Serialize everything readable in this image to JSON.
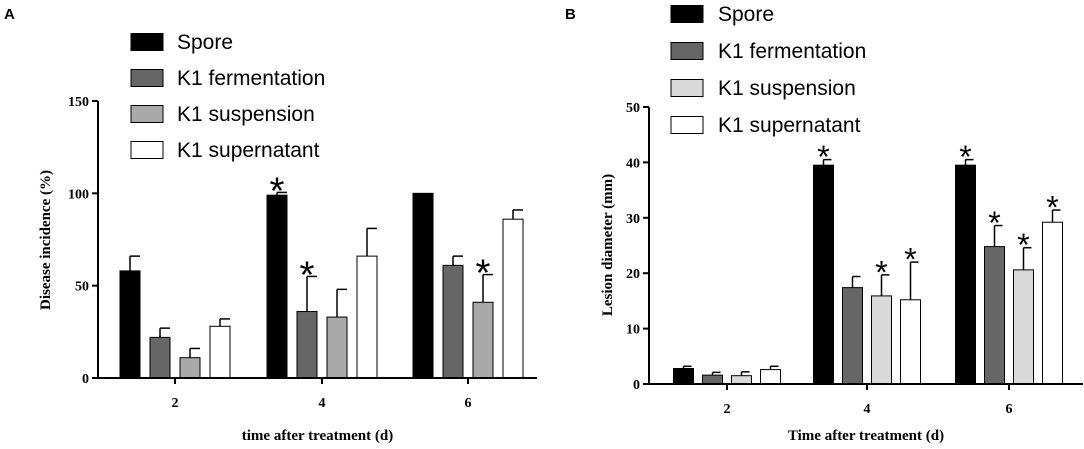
{
  "chart_data": [
    {
      "panel": "A",
      "type": "bar",
      "ylabel": "Disease incidence (%)",
      "xlabel": "time after treatment (d)",
      "categories": [
        "2",
        "4",
        "6"
      ],
      "ylim": [
        0,
        150
      ],
      "yticks": [
        "0",
        "50",
        "100",
        "150"
      ],
      "series": [
        {
          "name": "Spore",
          "color": "#000000",
          "values": [
            58,
            99,
            100
          ],
          "errors": [
            8,
            1.5,
            0
          ],
          "significant": [
            false,
            true,
            false
          ]
        },
        {
          "name": "K1 fermentation",
          "color": "#666666",
          "values": [
            22,
            36,
            61
          ],
          "errors": [
            5,
            19,
            5
          ],
          "significant": [
            false,
            true,
            false
          ]
        },
        {
          "name": "K1 suspension",
          "color": "#a9a9a9",
          "values": [
            11,
            33,
            41
          ],
          "errors": [
            5,
            15,
            15
          ],
          "significant": [
            false,
            false,
            true
          ]
        },
        {
          "name": "K1 supernatant",
          "color": "#ffffff",
          "values": [
            28,
            66,
            86
          ],
          "errors": [
            4,
            15,
            5
          ],
          "significant": [
            false,
            false,
            false
          ]
        }
      ],
      "significance_mark": "*"
    },
    {
      "panel": "B",
      "type": "bar",
      "ylabel": "Lesion diameter (mm)",
      "xlabel": "Time after treatment (d)",
      "categories": [
        "2",
        "4",
        "6"
      ],
      "ylim": [
        0,
        50
      ],
      "yticks": [
        "0",
        "10",
        "20",
        "30",
        "40",
        "50"
      ],
      "series": [
        {
          "name": "Spore",
          "color": "#000000",
          "values": [
            2.8,
            39.5,
            39.5
          ],
          "errors": [
            0.4,
            1,
            1
          ],
          "significant": [
            false,
            true,
            true
          ]
        },
        {
          "name": "K1 fermentation",
          "color": "#666666",
          "values": [
            1.6,
            17.4,
            24.8
          ],
          "errors": [
            0.5,
            2,
            3.8
          ],
          "significant": [
            false,
            false,
            true
          ]
        },
        {
          "name": "K1 suspension",
          "color": "#d9d9d9",
          "values": [
            1.5,
            15.9,
            20.6
          ],
          "errors": [
            0.7,
            3.8,
            4
          ],
          "significant": [
            false,
            true,
            true
          ]
        },
        {
          "name": "K1 supernatant",
          "color": "#ffffff",
          "values": [
            2.6,
            15.2,
            29.2
          ],
          "errors": [
            0.6,
            6.8,
            2.2
          ],
          "significant": [
            false,
            true,
            true
          ]
        }
      ],
      "significance_mark": "*"
    }
  ]
}
